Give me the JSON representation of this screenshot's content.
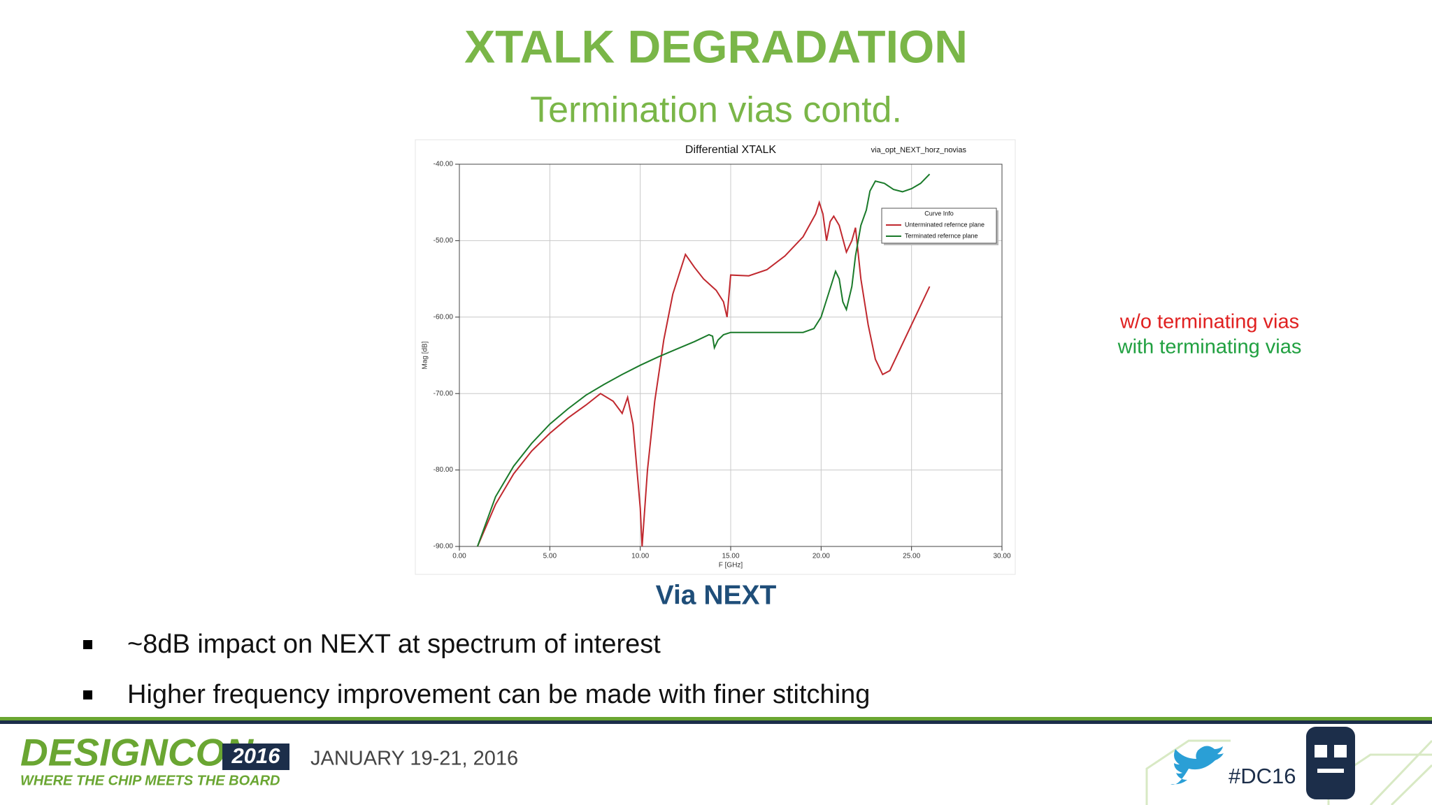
{
  "slide": {
    "title": "XTALK DEGRADATION",
    "subtitle": "Termination vias contd.",
    "annotations": [
      "w/o terminating vias",
      "with terminating vias"
    ],
    "caption": "Via NEXT",
    "bullets": [
      "~8dB impact on NEXT at spectrum of interest",
      "Higher frequency improvement can be made with finer stitching"
    ]
  },
  "footer": {
    "logo": "DESIGNCON",
    "logo_year": "2016",
    "tagline": "WHERE THE CHIP MEETS THE BOARD",
    "date": "JANUARY 19-21, 2016",
    "hashtag": "#DC16"
  },
  "chart_data": {
    "type": "line",
    "title": "Differential XTALK",
    "subtitle": "via_opt_NEXT_horz_novias",
    "x_label": "F [GHz]",
    "y_label": "Mag [dB]",
    "legend_title": "Curve Info",
    "legend": "upper-right",
    "grid": true,
    "xlim": [
      0,
      30
    ],
    "ylim": [
      -90,
      -40
    ],
    "xticks": [
      {
        "value": 0,
        "label": "0.00"
      },
      {
        "value": 5,
        "label": "5.00"
      },
      {
        "value": 10,
        "label": "10.00"
      },
      {
        "value": 15,
        "label": "15.00"
      },
      {
        "value": 20,
        "label": "20.00"
      },
      {
        "value": 25,
        "label": "25.00"
      },
      {
        "value": 30,
        "label": "30.00"
      }
    ],
    "yticks": [
      {
        "value": -40,
        "label": "-40.00"
      },
      {
        "value": -50,
        "label": "-50.00"
      },
      {
        "value": -60,
        "label": "-60.00"
      },
      {
        "value": -70,
        "label": "-70.00"
      },
      {
        "value": -80,
        "label": "-80.00"
      },
      {
        "value": -90,
        "label": "-90.00"
      }
    ],
    "series": [
      {
        "name": "Unterminated refernce plane",
        "color": "#c0282e",
        "x": [
          1,
          2,
          3,
          4,
          5,
          6,
          7,
          7.8,
          8.5,
          9,
          9.3,
          9.6,
          10,
          10.1,
          10.4,
          10.8,
          11.3,
          11.8,
          12.2,
          12.5,
          13,
          13.5,
          14.2,
          14.6,
          14.8,
          15,
          16,
          17,
          18,
          19,
          19.7,
          19.9,
          20.1,
          20.3,
          20.5,
          20.7,
          21,
          21.4,
          21.7,
          21.9,
          22.2,
          22.6,
          23,
          23.4,
          23.8,
          24.5,
          25.2,
          26
        ],
        "values": [
          -90,
          -84.5,
          -80.5,
          -77.5,
          -75.2,
          -73.2,
          -71.5,
          -70,
          -71,
          -72.6,
          -70.5,
          -74,
          -85,
          -90,
          -80,
          -71,
          -63,
          -57,
          -54,
          -51.8,
          -53.5,
          -55,
          -56.5,
          -58,
          -60,
          -54.5,
          -54.6,
          -53.8,
          -52,
          -49.5,
          -46.5,
          -45,
          -46.5,
          -50,
          -47.5,
          -46.8,
          -48,
          -51.5,
          -50,
          -48.3,
          -55,
          -61,
          -65.5,
          -67.5,
          -67,
          -63.5,
          -60,
          -56
        ]
      },
      {
        "name": "Terminated refernce plane",
        "color": "#1a7a2a",
        "x": [
          1,
          2,
          3,
          4,
          5,
          6,
          7,
          8,
          9,
          10,
          11,
          12,
          13,
          13.8,
          14,
          14.1,
          14.3,
          14.6,
          15,
          17,
          19,
          19.6,
          20,
          20.4,
          20.8,
          21,
          21.2,
          21.4,
          21.7,
          21.9,
          22.2,
          22.5,
          22.7,
          23,
          23.5,
          24,
          24.5,
          25,
          25.5,
          26
        ],
        "values": [
          -90,
          -83.5,
          -79.5,
          -76.5,
          -74,
          -72,
          -70.2,
          -68.8,
          -67.5,
          -66.3,
          -65.2,
          -64.2,
          -63.2,
          -62.3,
          -62.5,
          -64,
          -63,
          -62.3,
          -62,
          -62,
          -62,
          -61.5,
          -60,
          -57,
          -54,
          -55,
          -58,
          -59,
          -56,
          -52,
          -48,
          -46,
          -43.5,
          -42.2,
          -42.5,
          -43.3,
          -43.6,
          -43.2,
          -42.5,
          -41.3
        ]
      }
    ]
  }
}
